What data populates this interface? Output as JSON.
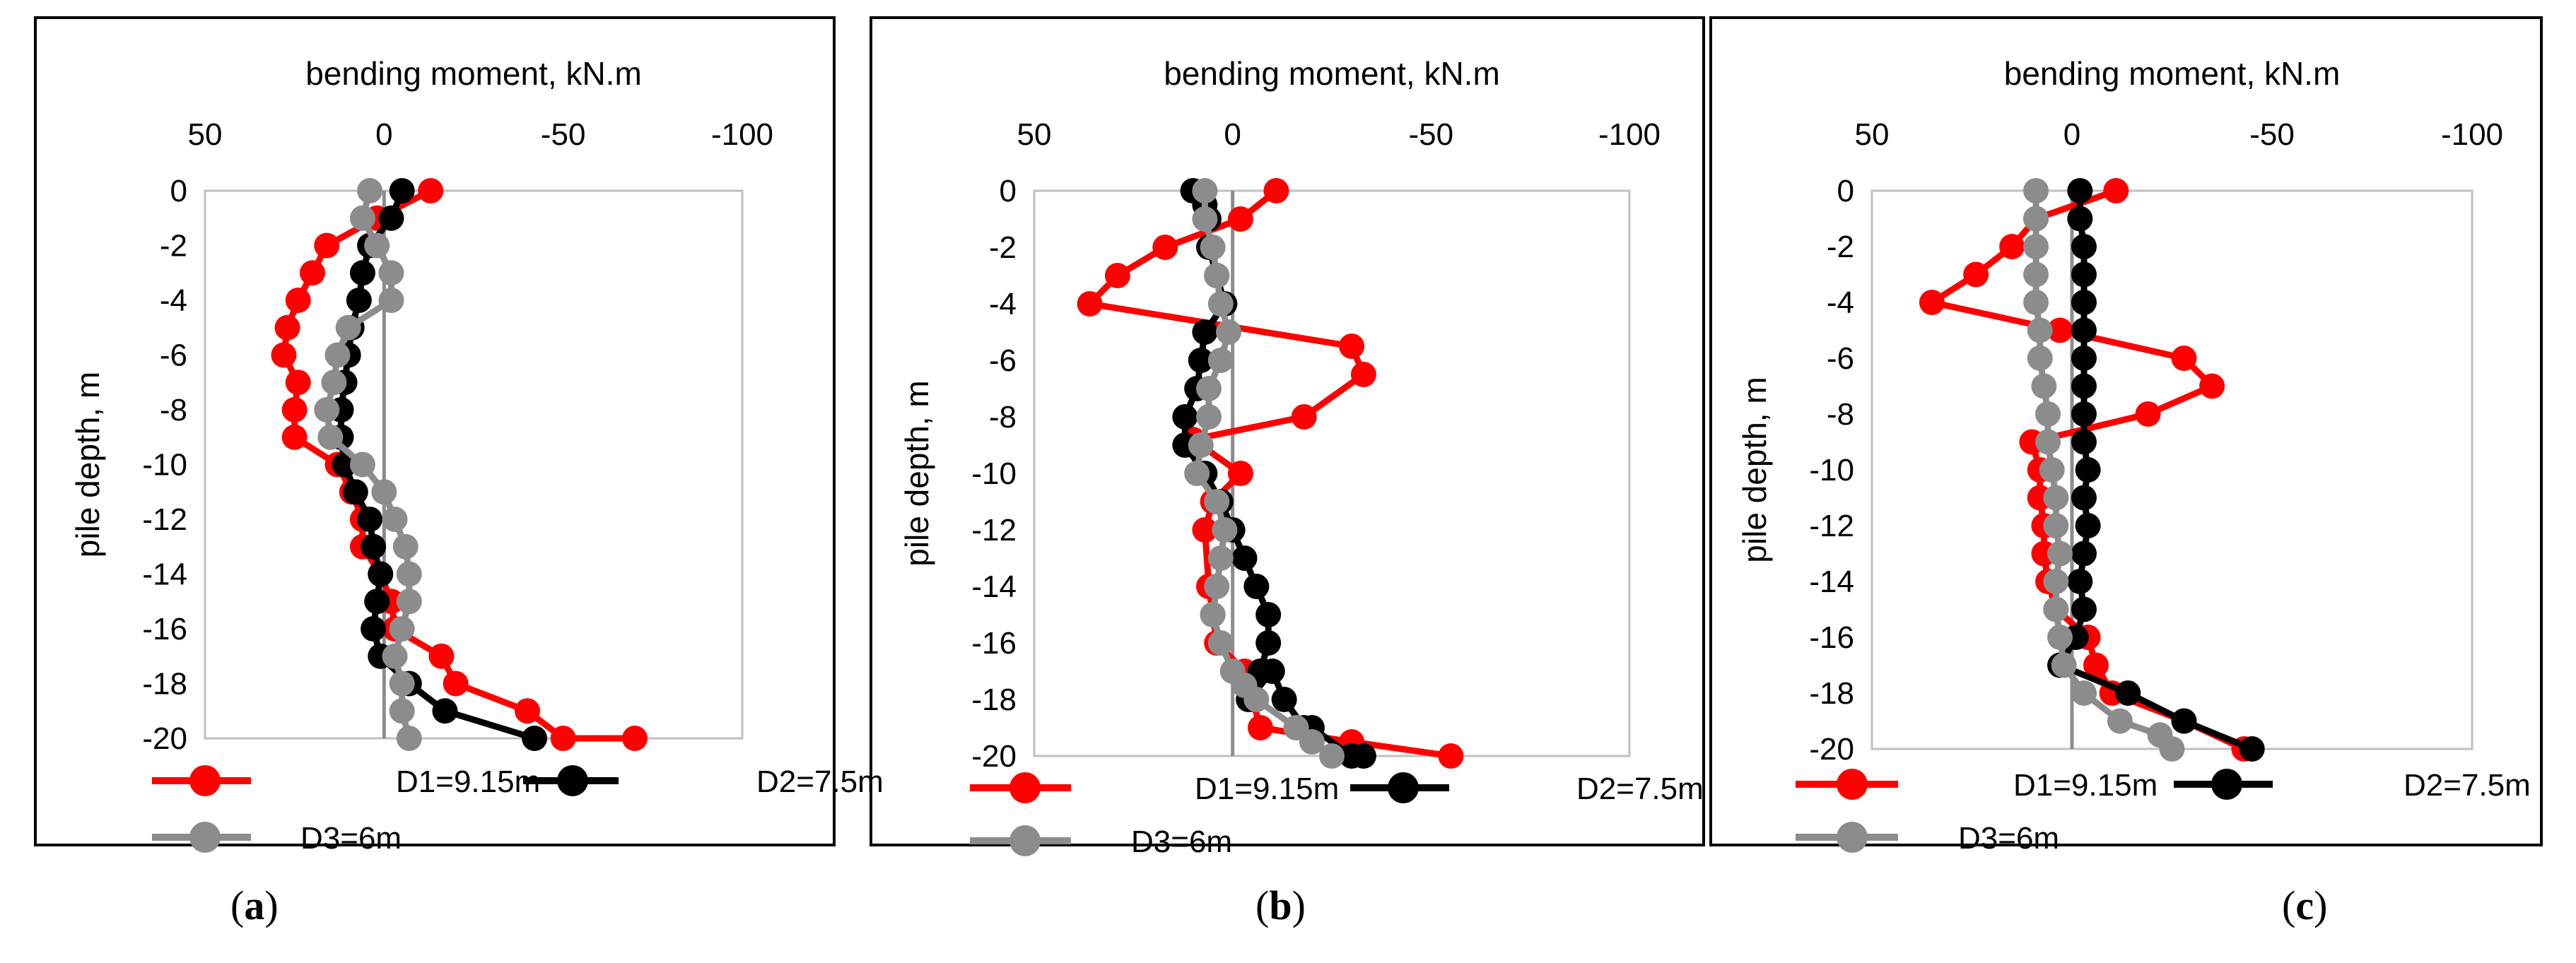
{
  "figure": {
    "panels": [
      {
        "label_open": "(",
        "label_letter": "a",
        "label_close": ")"
      },
      {
        "label_open": "(",
        "label_letter": "b",
        "label_close": ")"
      },
      {
        "label_open": "(",
        "label_letter": "c",
        "label_close": ")"
      }
    ]
  },
  "chart_data": [
    {
      "type": "line",
      "title": "",
      "xlabel": "bending moment, kN.m",
      "ylabel": "pile depth, m",
      "xlim": [
        50,
        -100
      ],
      "xticks": [
        "50",
        "0",
        "-50",
        "-100"
      ],
      "ylim": [
        -20,
        0
      ],
      "yticks": [
        "0",
        "-2",
        "-4",
        "-6",
        "-8",
        "-10",
        "-12",
        "-14",
        "-16",
        "-18",
        "-20"
      ],
      "grid": false,
      "legend": "bottom",
      "series": [
        {
          "name": "D1=9.15m",
          "color": "#ff0000",
          "x": [
            -13,
            2,
            16,
            20,
            24,
            27,
            28,
            24,
            25,
            25,
            13,
            9,
            6,
            6,
            1,
            -2,
            -3,
            -16,
            -20,
            -40,
            -50,
            -70
          ],
          "y": [
            0,
            -1,
            -2,
            -3,
            -4,
            -5,
            -6,
            -7,
            -8,
            -9,
            -10,
            -11,
            -12,
            -13,
            -14,
            -15,
            -16,
            -17,
            -18,
            -19,
            -20,
            -20
          ]
        },
        {
          "name": "D2=7.5m",
          "color": "#000000",
          "x": [
            -5,
            -2,
            4,
            6,
            7,
            9,
            10,
            11,
            12,
            12,
            11,
            8,
            4,
            3,
            1,
            2,
            3,
            1,
            -7,
            -17,
            -42
          ],
          "y": [
            0,
            -1,
            -2,
            -3,
            -4,
            -5,
            -6,
            -7,
            -8,
            -9,
            -10,
            -11,
            -12,
            -13,
            -14,
            -15,
            -16,
            -17,
            -18,
            -19,
            -20
          ]
        },
        {
          "name": "D3=6m",
          "color": "#8c8c8c",
          "x": [
            4,
            6,
            2,
            -2,
            -2,
            10,
            13,
            14,
            16,
            15,
            6,
            0,
            -3,
            -6,
            -7,
            -7,
            -5,
            -3,
            -5,
            -5,
            -7
          ],
          "y": [
            0,
            -1,
            -2,
            -3,
            -4,
            -5,
            -6,
            -7,
            -8,
            -9,
            -10,
            -11,
            -12,
            -13,
            -14,
            -15,
            -16,
            -17,
            -18,
            -19,
            -20
          ]
        }
      ]
    },
    {
      "type": "line",
      "title": "",
      "xlabel": "bending moment, kN.m",
      "ylabel": "pile depth, m",
      "xlim": [
        50,
        -100
      ],
      "xticks": [
        "50",
        "0",
        "-50",
        "-100"
      ],
      "ylim": [
        -20,
        0
      ],
      "yticks": [
        "0",
        "-2",
        "-4",
        "-6",
        "-8",
        "-10",
        "-12",
        "-14",
        "-16",
        "-18",
        "-20"
      ],
      "grid": false,
      "legend": "bottom",
      "series": [
        {
          "name": "D1=9.15m",
          "color": "#ff0000",
          "x": [
            -11,
            -2,
            17,
            29,
            36,
            -30,
            -33,
            -18,
            10,
            -2,
            5,
            7,
            6,
            5,
            4,
            -3,
            -5,
            -7,
            -30,
            -55
          ],
          "y": [
            0,
            -1,
            -2,
            -3,
            -4,
            -5.5,
            -6.5,
            -8,
            -8.8,
            -10,
            -11,
            -12,
            -14,
            -15,
            -16,
            -17,
            -18,
            -19,
            -19.5,
            -20
          ]
        },
        {
          "name": "D2=7.5m",
          "color": "#000000",
          "x": [
            10,
            7,
            6,
            6,
            4,
            2,
            7,
            8,
            9,
            12,
            12,
            7,
            3,
            0,
            -3,
            -6,
            -9,
            -9,
            -7,
            -4,
            -10,
            -13,
            -18,
            -20,
            -30,
            -33
          ],
          "y": [
            0,
            -0.5,
            -1,
            -2,
            -3,
            -4,
            -5,
            -6,
            -7,
            -8,
            -9,
            -10,
            -11,
            -12,
            -13,
            -14,
            -15,
            -16,
            -17,
            -18,
            -17,
            -18,
            -19,
            -19,
            -20,
            -20
          ]
        },
        {
          "name": "D3=6m",
          "color": "#8c8c8c",
          "x": [
            7,
            7,
            5,
            4,
            3,
            1,
            3,
            6,
            6,
            8,
            9,
            4,
            2,
            3,
            4,
            5,
            3,
            0,
            -3,
            -6,
            -16,
            -20,
            -25
          ],
          "y": [
            0,
            -1,
            -2,
            -3,
            -4,
            -5,
            -6,
            -7,
            -8,
            -9,
            -10,
            -11,
            -12,
            -13,
            -14,
            -15,
            -16,
            -17,
            -17.5,
            -18,
            -19,
            -19.5,
            -20
          ]
        }
      ]
    },
    {
      "type": "line",
      "title": "",
      "xlabel": "bending moment, kN.m",
      "ylabel": "pile depth, m",
      "xlim": [
        50,
        -100
      ],
      "xticks": [
        "50",
        "0",
        "-50",
        "-100"
      ],
      "ylim": [
        -20,
        0
      ],
      "yticks": [
        "0",
        "-2",
        "-4",
        "-6",
        "-8",
        "-10",
        "-12",
        "-14",
        "-16",
        "-18",
        "-20"
      ],
      "grid": false,
      "legend": "bottom",
      "series": [
        {
          "name": "D1=9.15m",
          "color": "#ff0000",
          "x": [
            -11,
            9,
            15,
            24,
            35,
            3,
            -28,
            -35,
            -19,
            10,
            8,
            8,
            7,
            7,
            6,
            4,
            -4,
            -6,
            -10,
            -28,
            -43
          ],
          "y": [
            0,
            -1,
            -2,
            -3,
            -4,
            -5,
            -6,
            -7,
            -8,
            -9,
            -10,
            -11,
            -12,
            -13,
            -14,
            -15,
            -16,
            -17,
            -18,
            -19,
            -20
          ]
        },
        {
          "name": "D2=7.5m",
          "color": "#000000",
          "x": [
            -2,
            -2,
            -3,
            -3,
            -3,
            -3,
            -3,
            -3,
            -3,
            -3,
            -4,
            -3,
            -4,
            -3,
            -2,
            -3,
            -1,
            3,
            -14,
            -28,
            -45
          ],
          "y": [
            0,
            -1,
            -2,
            -3,
            -4,
            -5,
            -6,
            -7,
            -8,
            -9,
            -10,
            -11,
            -12,
            -13,
            -14,
            -15,
            -16,
            -17,
            -18,
            -19,
            -20
          ]
        },
        {
          "name": "D3=6m",
          "color": "#8c8c8c",
          "x": [
            9,
            9,
            9,
            9,
            9,
            8,
            8,
            7,
            6,
            6,
            5,
            4,
            4,
            3,
            4,
            4,
            3,
            2,
            -3,
            -12,
            -22,
            -25
          ],
          "y": [
            0,
            -1,
            -2,
            -3,
            -4,
            -5,
            -6,
            -7,
            -8,
            -9,
            -10,
            -11,
            -12,
            -13,
            -14,
            -15,
            -16,
            -17,
            -18,
            -19,
            -19.5,
            -20
          ]
        }
      ]
    }
  ]
}
